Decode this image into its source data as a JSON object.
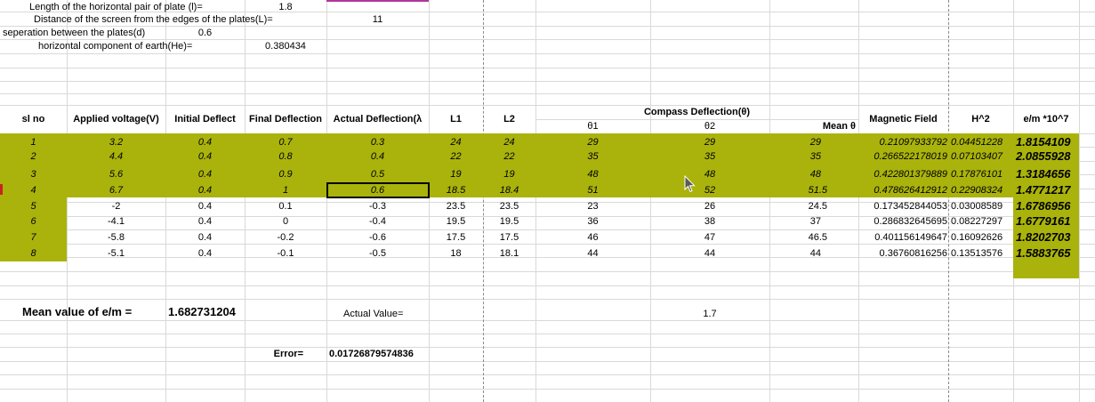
{
  "params": {
    "length_label": "Length of the horizontal pair of plate (l)=",
    "length_value": "1.8",
    "distance_label": "Distance of the screen from the edges of the plates(L)=",
    "distance_value": "11",
    "separation_label": "seperation between the plates(d)",
    "separation_value": "0.6",
    "earth_label": "horizontal component of earth(He)=",
    "earth_value": "0.380434"
  },
  "headers": {
    "sl_no": "sl no",
    "voltage": "Applied voltage(V)",
    "initial": "Initial Deflect",
    "final": "Final Deflection",
    "actual": "Actual Deflection(λ",
    "l1": "L1",
    "l2": "L2",
    "compass": "Compass Deflection(θ)",
    "theta1": "θ1",
    "theta2": "θ2",
    "mean_theta": "Mean θ",
    "magnetic": "Magnetic Field",
    "h2": "H^2",
    "em": "e/m *10^7"
  },
  "rows": [
    {
      "sl": "1",
      "v": "3.2",
      "init": "0.4",
      "fin": "0.7",
      "act": "0.3",
      "l1": "24",
      "l2": "24",
      "t1": "29",
      "t2": "29",
      "mean": "29",
      "mag": "0.21097933792",
      "h2": "0.04451228",
      "em": "1.8154109"
    },
    {
      "sl": "2",
      "v": "4.4",
      "init": "0.4",
      "fin": "0.8",
      "act": "0.4",
      "l1": "22",
      "l2": "22",
      "t1": "35",
      "t2": "35",
      "mean": "35",
      "mag": "0.266522178019",
      "h2": "0.07103407",
      "em": "2.0855928"
    },
    {
      "sl": "3",
      "v": "5.6",
      "init": "0.4",
      "fin": "0.9",
      "act": "0.5",
      "l1": "19",
      "l2": "19",
      "t1": "48",
      "t2": "48",
      "mean": "48",
      "mag": "0.422801379889",
      "h2": "0.17876101",
      "em": "1.3184656"
    },
    {
      "sl": "4",
      "v": "6.7",
      "init": "0.4",
      "fin": "1",
      "act": "0.6",
      "l1": "18.5",
      "l2": "18.4",
      "t1": "51",
      "t2": "52",
      "mean": "51.5",
      "mag": "0.478626412912",
      "h2": "0.22908324",
      "em": "1.4771217"
    },
    {
      "sl": "5",
      "v": "-2",
      "init": "0.4",
      "fin": "0.1",
      "act": "-0.3",
      "l1": "23.5",
      "l2": "23.5",
      "t1": "23",
      "t2": "26",
      "mean": "24.5",
      "mag": "0.173452844053",
      "h2": "0.03008589",
      "em": "1.6786956"
    },
    {
      "sl": "6",
      "v": "-4.1",
      "init": "0.4",
      "fin": "0",
      "act": "-0.4",
      "l1": "19.5",
      "l2": "19.5",
      "t1": "36",
      "t2": "38",
      "mean": "37",
      "mag": "0.286832645695",
      "h2": "0.08227297",
      "em": "1.6779161"
    },
    {
      "sl": "7",
      "v": "-5.8",
      "init": "0.4",
      "fin": "-0.2",
      "act": "-0.6",
      "l1": "17.5",
      "l2": "17.5",
      "t1": "46",
      "t2": "47",
      "mean": "46.5",
      "mag": "0.401156149647",
      "h2": "0.16092626",
      "em": "1.8202703"
    },
    {
      "sl": "8",
      "v": "-5.1",
      "init": "0.4",
      "fin": "-0.1",
      "act": "-0.5",
      "l1": "18",
      "l2": "18.1",
      "t1": "44",
      "t2": "44",
      "mean": "44",
      "mag": "0.36760816256",
      "h2": "0.13513576",
      "em": "1.5883765"
    }
  ],
  "summary": {
    "mean_label": "Mean value of e/m =",
    "mean_value": "1.682731204",
    "actual_label": "Actual Value=",
    "actual_value": "1.7",
    "error_label": "Error=",
    "error_value": "0.01726879574836"
  },
  "colors": {
    "highlight": "#aab30c",
    "gridline": "#d9d9d9",
    "page_break": "#8a8a8a"
  }
}
